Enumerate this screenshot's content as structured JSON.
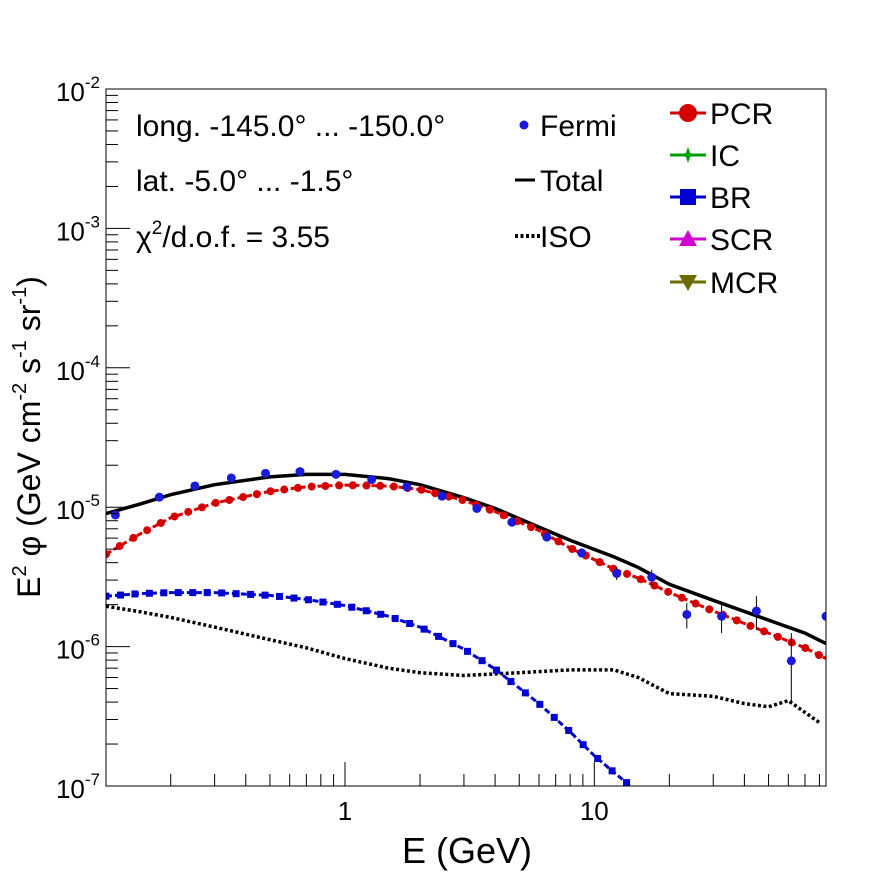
{
  "chart_data": {
    "type": "line",
    "xscale": "log",
    "yscale": "log",
    "xlim": [
      0.11,
      85
    ],
    "ylim": [
      1e-07,
      0.01
    ],
    "xlabel": "E (GeV)",
    "ylabel": {
      "base": "E",
      "sup": "2",
      "sym": "φ",
      "open": "(GeV cm",
      "sup_cm": "-2",
      "s": "s",
      "sup_s": "-1",
      "sr": "sr",
      "sup_sr": "-1",
      "close": ")"
    },
    "x_ticks": [
      {
        "v": 1,
        "label": "1"
      },
      {
        "v": 10,
        "label": "10"
      }
    ],
    "y_ticks": [
      {
        "v": 1e-07,
        "base": "10",
        "exp": "-7"
      },
      {
        "v": 1e-06,
        "base": "10",
        "exp": "-6"
      },
      {
        "v": 1e-05,
        "base": "10",
        "exp": "-5"
      },
      {
        "v": 0.0001,
        "base": "10",
        "exp": "-4"
      },
      {
        "v": 0.001,
        "base": "10",
        "exp": "-3"
      },
      {
        "v": 0.01,
        "base": "10",
        "exp": "-2"
      }
    ],
    "annotations": {
      "longitude": "long. -145.0° ... -150.0°",
      "latitude": "lat. -5.0° ... -1.5°",
      "chi_sym": "χ",
      "chi_sup": "2",
      "chi_rest": "/d.o.f. = 3.55"
    },
    "legend_left": [
      {
        "name": "Fermi",
        "color": "#1a1adb",
        "style": "dot"
      },
      {
        "name": "Total",
        "color": "#000000",
        "style": "solid"
      },
      {
        "name": "ISO",
        "color": "#000000",
        "style": "dotted"
      }
    ],
    "legend_right": [
      {
        "name": "PCR",
        "color": "#d40000",
        "marker": "circle"
      },
      {
        "name": "IC",
        "color": "#00a000",
        "marker": "star"
      },
      {
        "name": "BR",
        "color": "#0000d0",
        "marker": "square"
      },
      {
        "name": "SCR",
        "color": "#d000d0",
        "marker": "triangle-up"
      },
      {
        "name": "MCR",
        "color": "#6b6b00",
        "marker": "triangle-down"
      }
    ],
    "fermi": {
      "x": [
        0.12,
        0.18,
        0.25,
        0.35,
        0.48,
        0.66,
        0.92,
        1.28,
        1.77,
        2.45,
        3.38,
        4.67,
        6.45,
        8.9,
        12.3,
        17.0,
        23.5,
        32.4,
        44.7,
        61.7,
        85.0
      ],
      "y": [
        8.8e-06,
        1.18e-05,
        1.42e-05,
        1.62e-05,
        1.75e-05,
        1.8e-05,
        1.72e-05,
        1.58e-05,
        1.4e-05,
        1.2e-05,
        9.8e-06,
        7.8e-06,
        6.1e-06,
        4.7e-06,
        3.35e-06,
        3.15e-06,
        1.7e-06,
        1.65e-06,
        1.8e-06,
        7.9e-07,
        1.65e-06
      ],
      "y_err_low": [
        8.3e-06,
        1.12e-05,
        1.37e-05,
        1.57e-05,
        1.7e-05,
        1.75e-05,
        1.67e-05,
        1.53e-05,
        1.35e-05,
        1.16e-05,
        9.4e-06,
        7.4e-06,
        5.75e-06,
        4.35e-06,
        3e-06,
        2.75e-06,
        1.35e-06,
        1.25e-06,
        1.32e-06,
        4e-07,
        1.05e-06
      ],
      "y_err_high": [
        9.3e-06,
        1.24e-05,
        1.47e-05,
        1.67e-05,
        1.8e-05,
        1.85e-05,
        1.77e-05,
        1.63e-05,
        1.45e-05,
        1.25e-05,
        1.02e-05,
        8.2e-06,
        6.45e-06,
        5.05e-06,
        3.7e-06,
        3.55e-06,
        2.05e-06,
        2.1e-06,
        2.3e-06,
        1.25e-06,
        2.3e-06
      ]
    },
    "total": {
      "x": [
        0.11,
        0.15,
        0.2,
        0.3,
        0.5,
        0.7,
        1.0,
        1.5,
        2.0,
        3.0,
        4.0,
        6.0,
        8.0,
        12.0,
        15.0,
        20.0,
        30.0,
        50.0,
        70.0,
        85.0
      ],
      "y": [
        9e-06,
        1.05e-05,
        1.23e-05,
        1.45e-05,
        1.65e-05,
        1.72e-05,
        1.72e-05,
        1.6e-05,
        1.45e-05,
        1.17e-05,
        9.8e-06,
        7.2e-06,
        5.8e-06,
        4.4e-06,
        3.7e-06,
        2.8e-06,
        2.15e-06,
        1.55e-06,
        1.25e-06,
        1.05e-06
      ]
    },
    "pcr": {
      "x": [
        0.11,
        0.15,
        0.2,
        0.3,
        0.5,
        0.7,
        1.0,
        1.5,
        2.0,
        3.0,
        4.0,
        6.0,
        8.0,
        12.0,
        15.0,
        20.0,
        30.0,
        50.0,
        70.0,
        85.0
      ],
      "y": [
        4.6e-06,
        6.4e-06,
        8.4e-06,
        1.07e-05,
        1.3e-05,
        1.4e-05,
        1.44e-05,
        1.42e-05,
        1.34e-05,
        1.12e-05,
        9.3e-06,
        6.8e-06,
        5.1e-06,
        3.6e-06,
        3.1e-06,
        2.45e-06,
        1.8e-06,
        1.25e-06,
        9.8e-07,
        8.2e-07
      ]
    },
    "br": {
      "x": [
        0.11,
        0.15,
        0.2,
        0.3,
        0.5,
        0.7,
        1.0,
        1.5,
        2.0,
        3.0,
        4.0,
        6.0,
        8.0,
        10.0,
        12.0,
        14.0
      ],
      "y": [
        2.3e-06,
        2.4e-06,
        2.44e-06,
        2.44e-06,
        2.33e-06,
        2.18e-06,
        1.97e-06,
        1.65e-06,
        1.38e-06,
        9.6e-07,
        6.9e-07,
        3.9e-07,
        2.45e-07,
        1.65e-07,
        1.25e-07,
        1e-07
      ]
    },
    "iso": {
      "x": [
        0.11,
        0.15,
        0.2,
        0.3,
        0.5,
        0.7,
        1.0,
        1.5,
        2.0,
        3.0,
        5.0,
        8.0,
        12.0,
        15.0,
        20.0,
        30.0,
        40.0,
        50.0,
        60.0,
        80.0
      ],
      "y": [
        1.95e-06,
        1.78e-06,
        1.62e-06,
        1.38e-06,
        1.12e-06,
        9.8e-07,
        8.2e-07,
        7e-07,
        6.5e-07,
        6.2e-07,
        6.5e-07,
        6.8e-07,
        6.8e-07,
        6e-07,
        4.6e-07,
        4.4e-07,
        3.9e-07,
        3.7e-07,
        4.1e-07,
        2.85e-07
      ]
    }
  }
}
